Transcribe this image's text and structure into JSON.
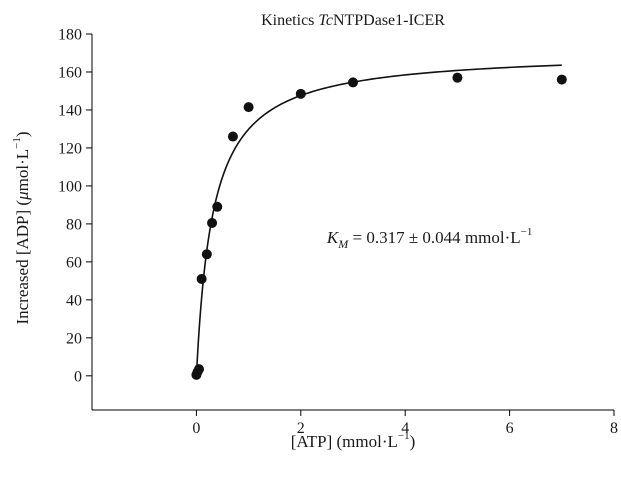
{
  "chart_data": {
    "type": "scatter",
    "title_prefix": "Kinetics ",
    "title_italic": "Tc",
    "title_suffix": "NTPDase1-ICER",
    "xlabel": "[ATP] (mmol·L",
    "xlabel_sup": "−1",
    "xlabel_end": ")",
    "ylabel": "Increased [ADP] (",
    "ylabel_mu": "μ",
    "ylabel_rest": "mol·L",
    "ylabel_sup": "−1",
    "ylabel_end": ")",
    "xlim": [
      -2,
      8
    ],
    "ylim": [
      -18,
      180
    ],
    "xticks": [
      0,
      2,
      4,
      6,
      8
    ],
    "yticks": [
      0,
      20,
      40,
      60,
      80,
      100,
      120,
      140,
      160,
      180
    ],
    "points": [
      {
        "x": 0.0,
        "y": 0.5
      },
      {
        "x": 0.02,
        "y": 2
      },
      {
        "x": 0.05,
        "y": 3.5
      },
      {
        "x": 0.1,
        "y": 51
      },
      {
        "x": 0.2,
        "y": 64
      },
      {
        "x": 0.3,
        "y": 80.5
      },
      {
        "x": 0.4,
        "y": 89
      },
      {
        "x": 0.7,
        "y": 126
      },
      {
        "x": 1.0,
        "y": 141.5
      },
      {
        "x": 2.0,
        "y": 148.5
      },
      {
        "x": 3.0,
        "y": 154.5
      },
      {
        "x": 5.0,
        "y": 157
      },
      {
        "x": 7.0,
        "y": 156
      }
    ],
    "fit": {
      "model": "Michaelis-Menten",
      "vmax": 171,
      "km": 0.317,
      "x_range": [
        0.005,
        7.0
      ]
    },
    "annotation": {
      "k": "K",
      "sub": "M",
      "text": " = 0.317 ± 0.044 mmol·L",
      "sup": "−1",
      "x": 2.5,
      "y": 70
    },
    "colors": {
      "points": "#111111",
      "line": "#111111"
    }
  }
}
